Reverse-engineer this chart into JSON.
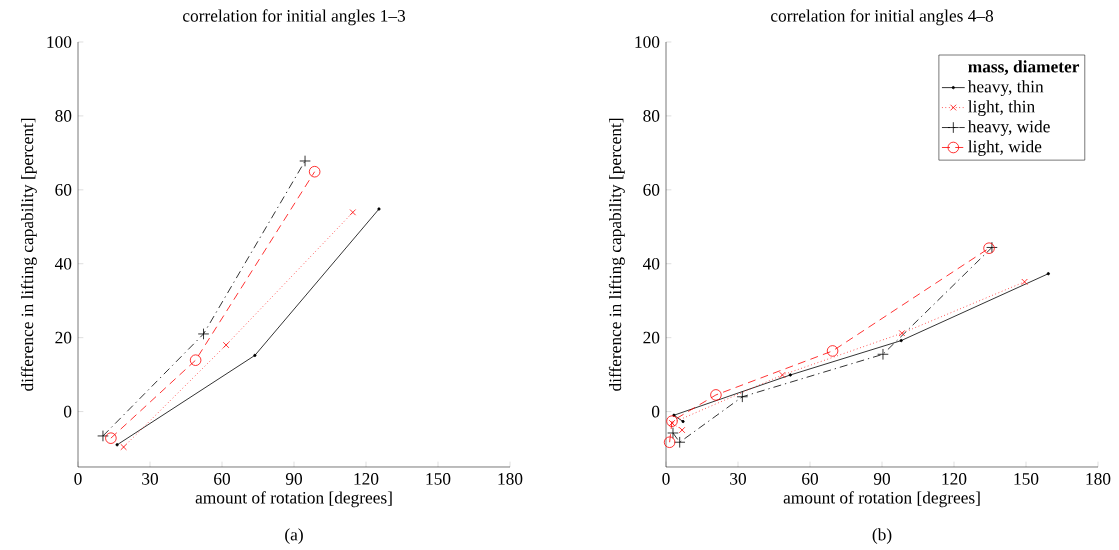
{
  "chart_data": [
    {
      "type": "line",
      "title": "correlation for initial angles 1–3",
      "xlabel": "amount of rotation [degrees]",
      "ylabel": "difference in lifting capability [percent]",
      "annotations": [
        "(a)"
      ],
      "xlim": [
        0,
        180
      ],
      "ylim": [
        -15,
        100
      ],
      "xticks": [
        0,
        30,
        60,
        90,
        120,
        150,
        180
      ],
      "yticks": [
        {
          "value": 0,
          "label": "0"
        },
        20,
        40,
        60,
        80,
        100
      ],
      "grid": false,
      "legend": false,
      "series": [
        {
          "color": "#000000",
          "marker": "dot",
          "line_style": "solid",
          "x": [
            16.3,
            73.7,
            125.4
          ],
          "values": [
            -9.0,
            15.2,
            54.8
          ]
        },
        {
          "color": "#ff0000",
          "marker": "cross",
          "line_style": "dotted",
          "x": [
            19,
            61.7,
            114.5
          ],
          "values": [
            -9.6,
            18,
            53.9
          ]
        },
        {
          "color": "#000000",
          "marker": "plus",
          "line_style": "dashdot",
          "x": [
            10.4,
            52.3,
            94.6
          ],
          "values": [
            -6.6,
            21,
            67.8
          ]
        },
        {
          "color": "#ff0000",
          "marker": "circle",
          "line_style": "dashed",
          "x": [
            13.7,
            49,
            98.6
          ],
          "values": [
            -7.2,
            13.9,
            64.9
          ]
        }
      ]
    },
    {
      "type": "line",
      "title": "correlation for initial angles 4–8",
      "xlabel": "amount of rotation [degrees]",
      "ylabel": "difference in lifting capability [percent]",
      "annotations": [
        "(b)"
      ],
      "xlim": [
        0,
        180
      ],
      "ylim": [
        -15,
        100
      ],
      "xticks": [
        0,
        30,
        60,
        90,
        120,
        150,
        180
      ],
      "yticks": [
        {
          "value": 0,
          "label": "0"
        },
        20,
        40,
        60,
        80,
        100
      ],
      "grid": false,
      "legend": "top right",
      "legend_title": "mass, diameter",
      "series": [
        {
          "name": "heavy, thin",
          "color": "#000000",
          "marker": "dot",
          "line_style": "solid",
          "x": [
            7.1,
            3.3,
            51.8,
            98,
            159.3
          ],
          "values": [
            -2.7,
            -1.0,
            9.9,
            19.2,
            37.3
          ]
        },
        {
          "name": "light, thin",
          "color": "#ff0000",
          "marker": "cross",
          "line_style": "dotted",
          "x": [
            6.7,
            2.5,
            48.5,
            98.3,
            149.4
          ],
          "values": [
            -5.0,
            -3.1,
            9.9,
            21.2,
            35.1
          ]
        },
        {
          "name": "heavy, wide",
          "color": "#000000",
          "marker": "plus",
          "line_style": "dashdot",
          "x": [
            2.9,
            5.7,
            31.8,
            90.4,
            135.8
          ],
          "values": [
            -5.8,
            -8.3,
            4.0,
            15.5,
            44.4
          ]
        },
        {
          "name": "light, wide",
          "color": "#ff0000",
          "marker": "circle",
          "line_style": "dashed",
          "x": [
            1.5,
            2.5,
            20.8,
            69.4,
            134.6
          ],
          "values": [
            -8.3,
            -2.6,
            4.5,
            16.4,
            44.2
          ]
        }
      ]
    }
  ]
}
